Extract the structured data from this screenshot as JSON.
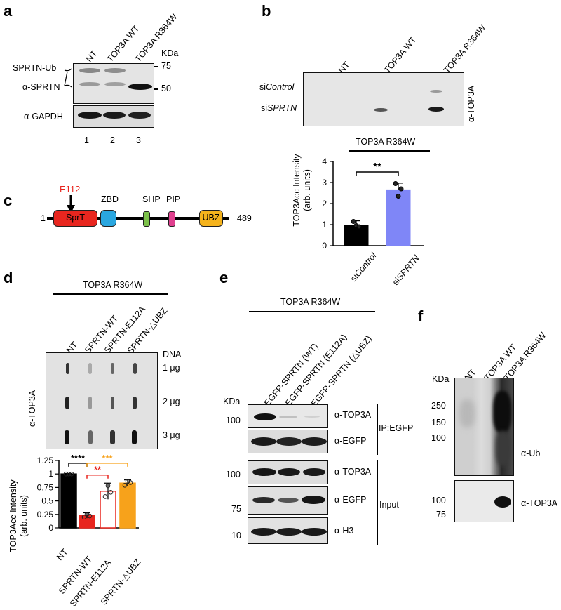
{
  "figure": {
    "panel_labels": {
      "a": "a",
      "b": "b",
      "c": "c",
      "d": "d",
      "e": "e",
      "f": "f"
    },
    "colors": {
      "black": "#000000",
      "red": "#e8261f",
      "blue": "#7f86f7",
      "orange": "#f7a21b",
      "sprT": "#e8261f",
      "zbd": "#2aa7e0",
      "shp": "#7cc14a",
      "pip": "#e0408f",
      "ubz": "#f5b31c"
    }
  },
  "panel_a": {
    "lanes": [
      "NT",
      "TOP3A WT",
      "TOP3A R364W"
    ],
    "kda_label": "KDa",
    "markers": [
      "75",
      "50"
    ],
    "band_labels": [
      "SPRTN-Ub",
      "α-SPRTN",
      "α-GAPDH"
    ],
    "lane_numbers": [
      "1",
      "2",
      "3"
    ]
  },
  "panel_b": {
    "lanes": [
      "NT",
      "TOP3A WT",
      "TOP3A R364W"
    ],
    "row_prefixes": [
      "si",
      "si"
    ],
    "row_italic": [
      "Control",
      "SPRTN"
    ],
    "antibody": "α-TOP3A",
    "chart_title": "TOP3A R364W",
    "significance": "**"
  },
  "panel_c": {
    "mutation": "E112",
    "start": "1",
    "end": "489",
    "domains": [
      "SprT",
      "ZBD",
      "SHP",
      "PIP",
      "UBZ"
    ]
  },
  "panel_d": {
    "header": "TOP3A R364W",
    "lanes": [
      "NT",
      "SPRTN-WT",
      "SPRTN-E112A",
      "SPRTN-△UBZ"
    ],
    "dna_label": "DNA",
    "amounts": [
      "1 μg",
      "2 μg",
      "3 μg"
    ],
    "antibody": "α-TOP3A",
    "significance": {
      "black": "****",
      "red": "**",
      "orange": "***"
    }
  },
  "panel_e": {
    "header": "TOP3A R364W",
    "lanes": [
      "EGFP-SPRTN (WT)",
      "EGFP-SPRTN (E112A)",
      "EGFP-SPRTN (△UBZ)"
    ],
    "kda_label": "KDa",
    "blots": [
      {
        "antibody": "α-TOP3A",
        "marker": "100"
      },
      {
        "antibody": "α-EGFP",
        "marker": ""
      },
      {
        "antibody": "α-TOP3A",
        "marker": "100"
      },
      {
        "antibody": "α-EGFP",
        "marker": "75"
      },
      {
        "antibody": "α-H3",
        "marker": "10"
      }
    ],
    "groups": [
      "IP:EGFP",
      "Input"
    ]
  },
  "panel_f": {
    "lanes": [
      "NT",
      "TOP3A WT",
      "TOP3A R364W"
    ],
    "kda_label": "KDa",
    "markers_top": [
      "250",
      "150",
      "100"
    ],
    "markers_bottom": [
      "100",
      "75"
    ],
    "antibodies": [
      "α-Ub",
      "α-TOP3A"
    ]
  },
  "chart_data": [
    {
      "type": "bar",
      "categories": [
        "siControl",
        "siSPRTN"
      ],
      "values": [
        1.0,
        2.67
      ],
      "errors": [
        0.18,
        0.3
      ],
      "points": [
        [
          1.15,
          0.95,
          0.9
        ],
        [
          2.95,
          2.35,
          2.7
        ]
      ],
      "colors": [
        "#000000",
        "#7f86f7"
      ],
      "title": "TOP3A R364W",
      "ylabel": "TOP3Acc Intensity (arb. units)",
      "ylim": [
        0,
        4
      ],
      "yticks": [
        "0",
        "1",
        "2",
        "3",
        "4"
      ]
    },
    {
      "type": "bar",
      "categories": [
        "NT",
        "SPRTN-WT",
        "SPRTN-E112A",
        "SPRTN-△UBZ"
      ],
      "values": [
        1.0,
        0.23,
        0.68,
        0.83
      ],
      "errors": [
        0.01,
        0.05,
        0.15,
        0.06
      ],
      "points": [
        [
          1.0,
          1.0,
          1.0
        ],
        [
          0.2,
          0.25,
          0.22
        ],
        [
          0.58,
          0.78,
          0.66
        ],
        [
          0.79,
          0.86,
          0.84
        ]
      ],
      "colors": [
        "#000000",
        "#e8261f",
        "#ffffff",
        "#f7a21b"
      ],
      "edge_colors": [
        "#000000",
        "#e8261f",
        "#e8261f",
        "#f7a21b"
      ],
      "ylabel": "TOP3Acc Intensity (arb. units)",
      "ylim": [
        0,
        1.25
      ],
      "yticks": [
        "0",
        "0.25",
        "0.5",
        "0.75",
        "1",
        "1.25"
      ]
    }
  ]
}
